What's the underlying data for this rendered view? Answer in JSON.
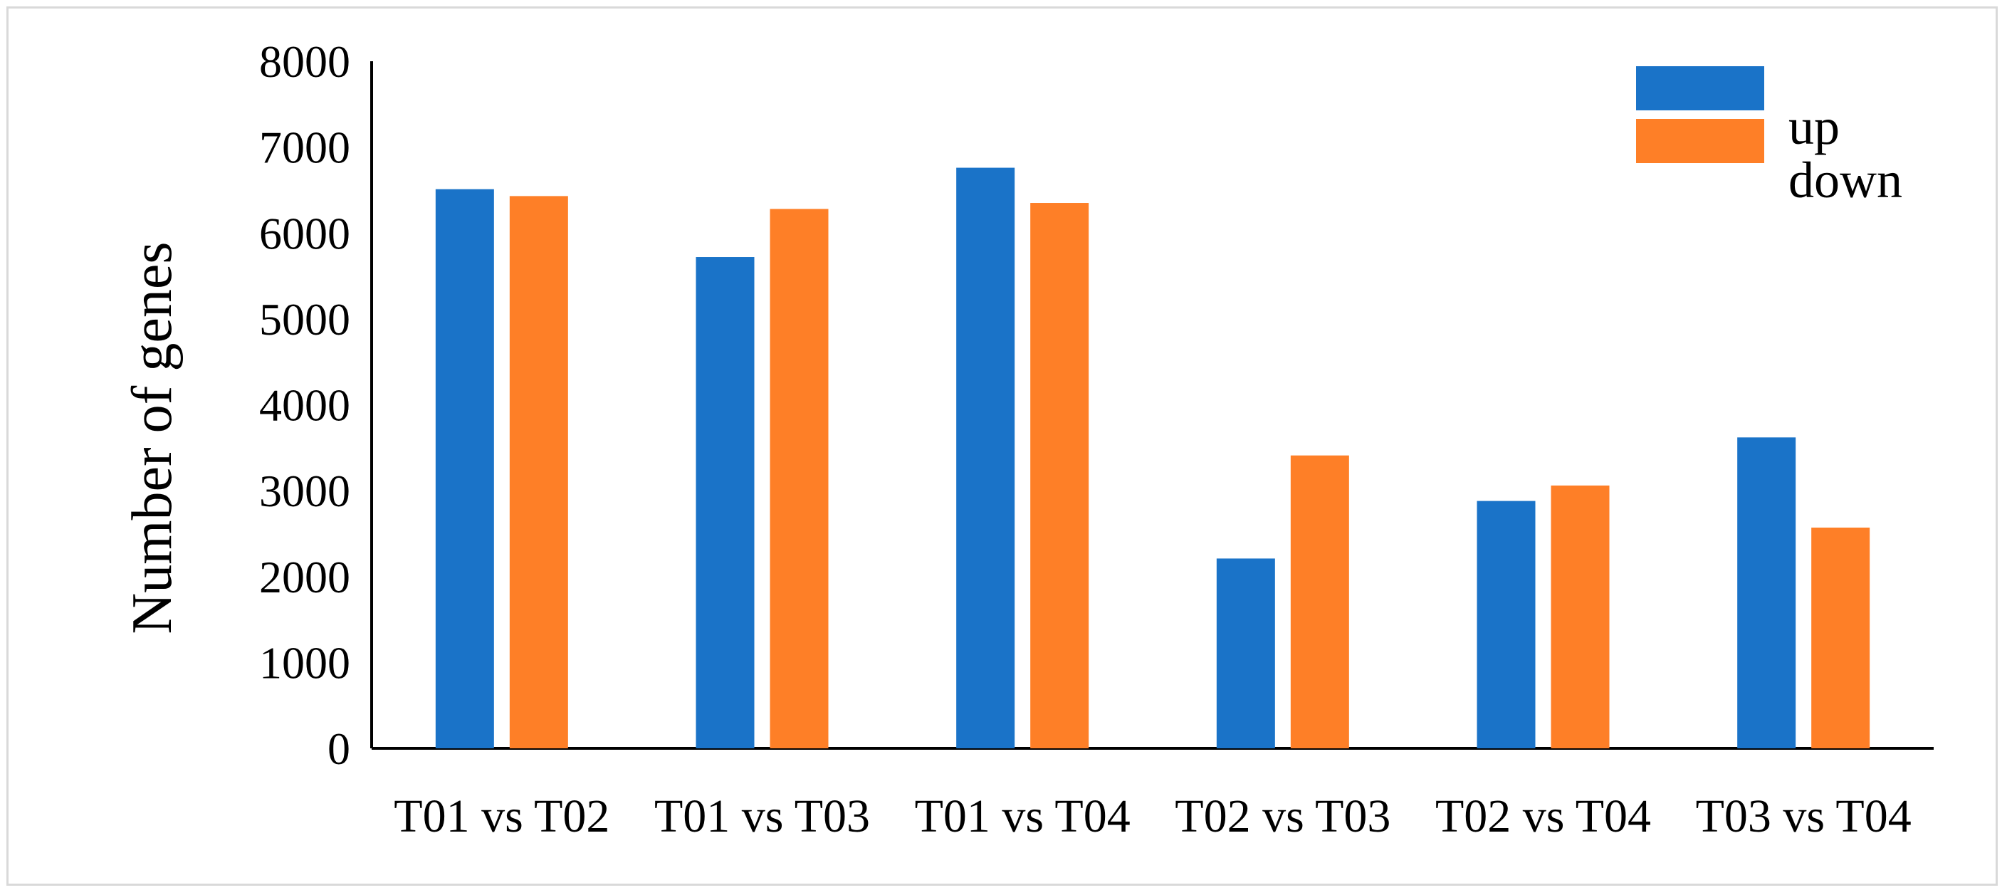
{
  "chart_data": {
    "type": "bar",
    "title": "",
    "xlabel": "",
    "ylabel": "Number of genes",
    "ylim": [
      0,
      8000
    ],
    "yticks": [
      "0",
      "1000",
      "2000",
      "3000",
      "4000",
      "5000",
      "6000",
      "7000",
      "8000"
    ],
    "categories": [
      "T01 vs T02",
      "T01 vs T03",
      "T01 vs T04",
      "T02 vs T03",
      "T02 vs T04",
      "T03 vs T04"
    ],
    "series": [
      {
        "name": "up",
        "color": "#1a73c8",
        "values": [
          6510,
          5720,
          6760,
          2210,
          2880,
          3620
        ]
      },
      {
        "name": "down",
        "color": "#fe7f27",
        "values": [
          6430,
          6280,
          6350,
          3410,
          3060,
          2570
        ]
      }
    ],
    "legend": "top-right",
    "grid": false
  }
}
